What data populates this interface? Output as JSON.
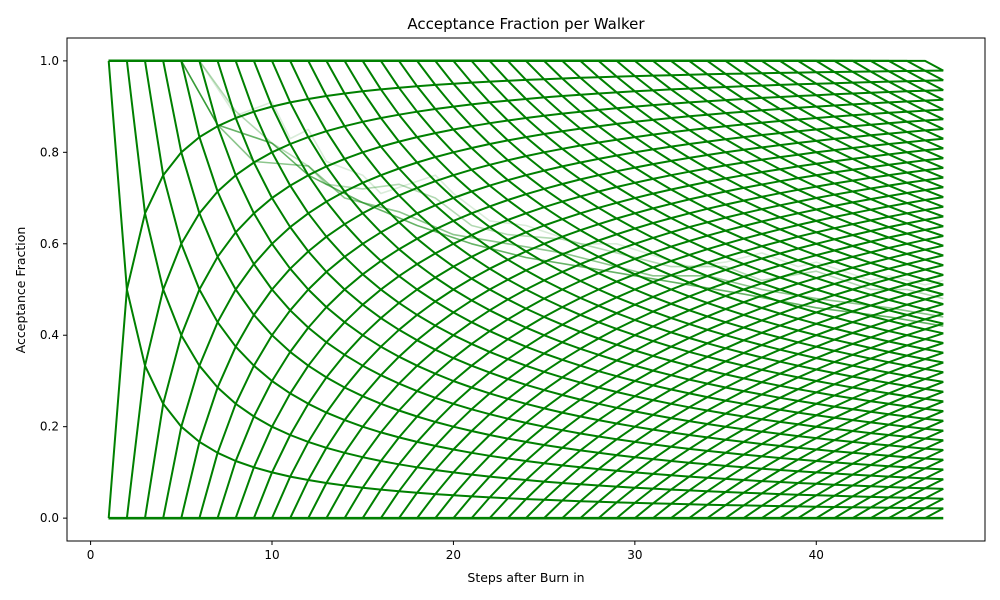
{
  "chart_data": {
    "type": "line",
    "title": "Acceptance Fraction per Walker",
    "xlabel": "Steps after Burn in",
    "ylabel": "Acceptance Fraction",
    "xlim": [
      -1.3,
      49.3
    ],
    "ylim": [
      -0.05,
      1.05
    ],
    "xticks": [
      0,
      10,
      20,
      30,
      40
    ],
    "yticks": [
      0.0,
      0.2,
      0.4,
      0.6,
      0.8,
      1.0
    ],
    "ytick_labels": [
      "0.0",
      "0.2",
      "0.4",
      "0.6",
      "0.8",
      "1.0"
    ],
    "grid": false,
    "legend": "none",
    "steps": [
      1,
      47
    ],
    "line_color": "#008000",
    "series_encoding": "acceptance fraction of walker after each step = number of accepted moves / step; each line is one walker with accepted count k after step s",
    "series": [
      {
        "start_step": 1,
        "accepted_counts": "0..46"
      },
      {
        "start_step": 1,
        "accepted_counts": "1..47"
      }
    ],
    "light_series": [
      {
        "opacity": 0.15,
        "values": [
          [
            6,
            1.0
          ],
          [
            8,
            0.88
          ],
          [
            10,
            0.91
          ],
          [
            11,
            0.83
          ],
          [
            12,
            0.85
          ],
          [
            13,
            0.78
          ],
          [
            15,
            0.75
          ],
          [
            16,
            0.71
          ],
          [
            19,
            0.75
          ],
          [
            20,
            0.71
          ],
          [
            22,
            0.65
          ],
          [
            24,
            0.64
          ],
          [
            27,
            0.6
          ],
          [
            29,
            0.6
          ],
          [
            33,
            0.55
          ],
          [
            35,
            0.56
          ],
          [
            37,
            0.58
          ],
          [
            39,
            0.55
          ],
          [
            40,
            0.56
          ],
          [
            43,
            0.52
          ],
          [
            44,
            0.53
          ],
          [
            46,
            0.51
          ],
          [
            47,
            0.52
          ]
        ]
      },
      {
        "opacity": 0.3,
        "values": [
          [
            6,
            1.0
          ],
          [
            8,
            0.89
          ],
          [
            10,
            0.82
          ],
          [
            12,
            0.77
          ],
          [
            13,
            0.73
          ],
          [
            15,
            0.72
          ],
          [
            17,
            0.73
          ],
          [
            19,
            0.7
          ],
          [
            21,
            0.64
          ],
          [
            23,
            0.62
          ],
          [
            26,
            0.61
          ],
          [
            29,
            0.58
          ],
          [
            32,
            0.55
          ],
          [
            35,
            0.55
          ],
          [
            37,
            0.52
          ],
          [
            40,
            0.54
          ],
          [
            43,
            0.5
          ],
          [
            45,
            0.5
          ],
          [
            47,
            0.48
          ]
        ]
      },
      {
        "opacity": 0.45,
        "values": [
          [
            5,
            1.0
          ],
          [
            7,
            0.86
          ],
          [
            9,
            0.78
          ],
          [
            12,
            0.77
          ],
          [
            14,
            0.7
          ],
          [
            17,
            0.67
          ],
          [
            20,
            0.62
          ],
          [
            23,
            0.6
          ],
          [
            26,
            0.58
          ],
          [
            28,
            0.56
          ],
          [
            31,
            0.53
          ],
          [
            34,
            0.53
          ],
          [
            37,
            0.5
          ],
          [
            40,
            0.48
          ],
          [
            44,
            0.46
          ],
          [
            47,
            0.44
          ]
        ]
      },
      {
        "opacity": 0.6,
        "values": [
          [
            5,
            1.0
          ],
          [
            7,
            0.86
          ],
          [
            10,
            0.82
          ],
          [
            12,
            0.75
          ],
          [
            15,
            0.69
          ],
          [
            18,
            0.64
          ],
          [
            21,
            0.6
          ],
          [
            24,
            0.57
          ],
          [
            27,
            0.55
          ],
          [
            30,
            0.53
          ],
          [
            33,
            0.51
          ],
          [
            36,
            0.49
          ],
          [
            40,
            0.46
          ],
          [
            44,
            0.44
          ],
          [
            47,
            0.42
          ]
        ]
      }
    ]
  }
}
